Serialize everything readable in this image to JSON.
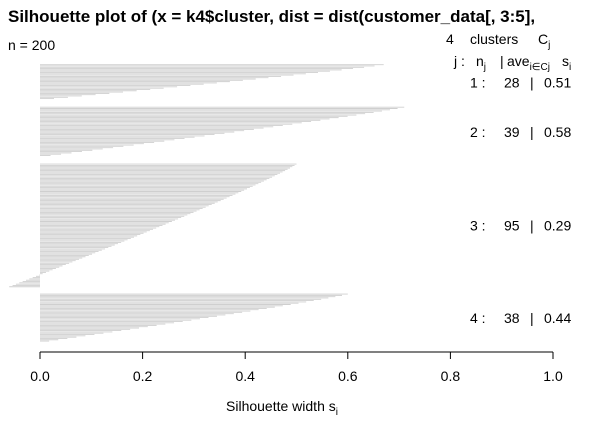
{
  "chart_data": {
    "type": "bar",
    "title": "Silhouette plot of (x = k4$cluster, dist = dist(customer_data[, 3:5],",
    "n_label": "n = 200",
    "clusters_header": {
      "count": "4",
      "word": "clusters",
      "c": "C",
      "c_sub": "j"
    },
    "column_header": {
      "j": "j :",
      "n": "n",
      "n_sub": "j",
      "sep": "|",
      "ave": "ave",
      "ave_sub": "i∈Cj",
      "s": "s",
      "s_sub": "i"
    },
    "xlabel": "Silhouette width s",
    "xlabel_sub": "i",
    "xlim": [
      0.0,
      1.0
    ],
    "xticks": [
      "0.0",
      "0.2",
      "0.4",
      "0.6",
      "0.8",
      "1.0"
    ],
    "total_n": 200,
    "clusters": [
      {
        "label": "1 :",
        "n": "28",
        "sep": "|",
        "avg": "0.51",
        "max": 0.67,
        "min": 0.0
      },
      {
        "label": "2 :",
        "n": "39",
        "sep": "|",
        "avg": "0.58",
        "max": 0.71,
        "min": 0.0
      },
      {
        "label": "3 :",
        "n": "95",
        "sep": "|",
        "avg": "0.29",
        "max": 0.5,
        "min": -0.06
      },
      {
        "label": "4 :",
        "n": "38",
        "sep": "|",
        "avg": "0.44",
        "max": 0.6,
        "min": 0.0
      }
    ]
  }
}
